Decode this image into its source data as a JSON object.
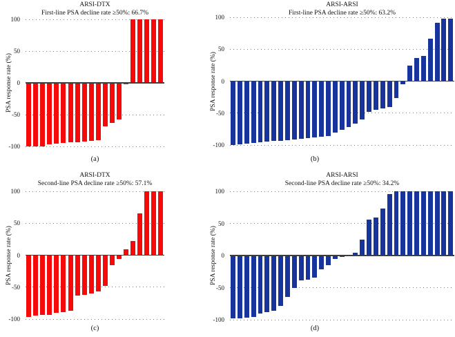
{
  "figure": {
    "ylabel": "PSA response rate (%)",
    "yticks": [
      "100",
      "50",
      "0",
      "-50",
      "-100"
    ],
    "ylim": [
      -100,
      100
    ],
    "grid": "dotted horizontal lines at 100, 50, -50, -100",
    "colors": {
      "red": "#f60909",
      "blue": "#17349c",
      "axis": "#3d3d3d",
      "grid_dots": "#777777",
      "background": "#ffffff"
    }
  },
  "chart_data": [
    {
      "type": "bar",
      "style": "waterfall",
      "panel": "a",
      "title": "ARSI-DTX",
      "subtitle": "First-line PSA decline rate ≥50%: 66.7%",
      "caption": "(a)",
      "ylabel": "PSA response rate (%)",
      "ylim": [
        -100,
        100
      ],
      "color_key": "red",
      "values": [
        -100,
        -100,
        -100,
        -97,
        -96,
        -95,
        -94,
        -93,
        -92,
        -91,
        -90,
        -69,
        -63,
        -58,
        -2,
        100,
        100,
        100,
        100,
        100
      ]
    },
    {
      "type": "bar",
      "style": "waterfall",
      "panel": "b",
      "title": "ARSI-ARSI",
      "subtitle": "First-line PSA decline rate ≥50%: 63.2%",
      "caption": "(b)",
      "ylabel": "PSA response rate (%)",
      "ylim": [
        -100,
        100
      ],
      "color_key": "blue",
      "values": [
        -100,
        -99,
        -98,
        -97,
        -96,
        -95,
        -94,
        -93,
        -92,
        -91,
        -90,
        -89,
        -88,
        -87,
        -86,
        -80,
        -76,
        -72,
        -66,
        -60,
        -48,
        -45,
        -43,
        -41,
        -26,
        -5,
        24,
        36,
        39,
        67,
        91,
        98,
        98
      ]
    },
    {
      "type": "bar",
      "style": "waterfall",
      "panel": "c",
      "title": "ARSI-DTX",
      "subtitle": "Second-line PSA decline rate ≥50%: 57.1%",
      "caption": "(c)",
      "ylabel": "PSA response rate (%)",
      "ylim": [
        -100,
        100
      ],
      "color_key": "red",
      "values": [
        -97,
        -95,
        -94,
        -93,
        -90,
        -89,
        -87,
        -63,
        -62,
        -60,
        -57,
        -48,
        -16,
        -6,
        9,
        22,
        65,
        100,
        100,
        100
      ]
    },
    {
      "type": "bar",
      "style": "waterfall",
      "panel": "d",
      "title": "ARSI-ARSI",
      "subtitle": "Second-line PSA decline rate ≥50%: 34.2%",
      "caption": "(d)",
      "ylabel": "PSA response rate (%)",
      "ylim": [
        -100,
        100
      ],
      "color_key": "blue",
      "values": [
        -98,
        -98,
        -97,
        -96,
        -90,
        -88,
        -86,
        -79,
        -65,
        -50,
        -39,
        -38,
        -34,
        -22,
        -15,
        -5,
        -2,
        0,
        4,
        25,
        56,
        59,
        73,
        96,
        100,
        100,
        100,
        100,
        100,
        100,
        100,
        100,
        100
      ]
    }
  ]
}
